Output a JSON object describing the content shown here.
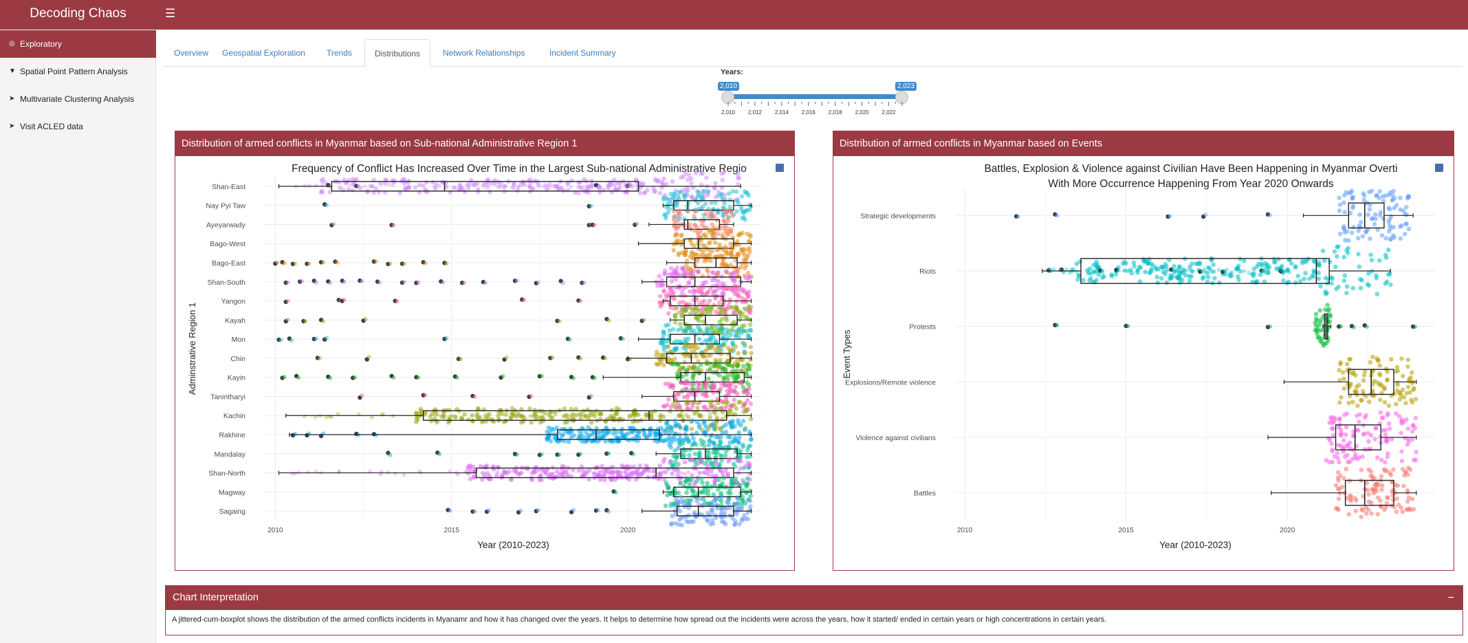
{
  "app": {
    "title": "Decoding Chaos",
    "menu_icon": "hamburger-icon"
  },
  "sidebar": {
    "items": [
      {
        "label": "Exploratory",
        "icon": "globe-icon",
        "active": true
      },
      {
        "label": "Spatial Point Pattern Analysis",
        "icon": "map-marker-icon",
        "active": false
      },
      {
        "label": "Multivariate Clustering Analysis",
        "icon": "map-pin-icon",
        "active": false
      },
      {
        "label": "Visit ACLED data",
        "icon": "paper-plane-icon",
        "active": false
      }
    ]
  },
  "tabs": [
    {
      "label": "Overview",
      "active": false
    },
    {
      "label": "Geospatial Exploration",
      "active": false
    },
    {
      "label": "Trends",
      "active": false
    },
    {
      "label": "Distributions",
      "active": true
    },
    {
      "label": "Network Relationships",
      "active": false
    },
    {
      "label": "Incident Summary",
      "active": false
    }
  ],
  "slider": {
    "label": "Years:",
    "from_label": "2,010",
    "to_label": "2,023",
    "min": 2010,
    "max": 2023,
    "from": 2010,
    "to": 2023,
    "tick_labels": [
      "2,010",
      "2,012",
      "2,014",
      "2,016",
      "2,018",
      "2,020",
      "2,022"
    ]
  },
  "panels": {
    "left_header": "Distribution of armed conflicts in Myanmar based on Sub-national Administrative Region 1",
    "right_header": "Distribution of armed conflicts in Myanmar based on Events"
  },
  "interpretation": {
    "title": "Chart Interpretation",
    "collapse_label": "−",
    "text": "A jittered-cum-boxplot shows the distribution of the armed conflicts incidents in Myanamr and how it has changed over the years. It helps to determine how spread out the incidents were across the years, how it started/ ended in certain years or high concentrations in certain years."
  },
  "chart_data": [
    {
      "type": "box",
      "title": "Frequency of Conflict Has Increased Over Time in the Largest Sub-national Administrative Regio",
      "xlabel": "Year (2010-2023)",
      "ylabel": "Adminstrative Region 1",
      "xlim": [
        2009.7,
        2023.8
      ],
      "xticks": [
        2010,
        2015,
        2020
      ],
      "categories": [
        "Shan-East",
        "Nay Pyi Taw",
        "Ayeyarwady",
        "Bago-West",
        "Bago-East",
        "Shan-South",
        "Yangon",
        "Kayah",
        "Mon",
        "Chin",
        "Kayin",
        "Tanintharyi",
        "Kachin",
        "Rakhine",
        "Mandalay",
        "Shan-North",
        "Magway",
        "Sagaing"
      ],
      "colors": [
        "#d18cff",
        "#29c1d6",
        "#fb7f73",
        "#d9951c",
        "#ee8b27",
        "#e26df2",
        "#ff69ac",
        "#7eb51b",
        "#13bfd0",
        "#c0a118",
        "#22b722",
        "#ff57c2",
        "#9aa812",
        "#0aa8ef",
        "#07c394",
        "#d96cf4",
        "#00c072",
        "#6498ff"
      ],
      "boxes": [
        {
          "min": 2010.1,
          "q1": 2011.6,
          "median": 2014.8,
          "q3": 2020.3,
          "max": 2023.2
        },
        {
          "min": 2021.0,
          "q1": 2021.3,
          "median": 2021.7,
          "q3": 2023.0,
          "max": 2023.5
        },
        {
          "min": 2020.6,
          "q1": 2021.6,
          "median": 2021.7,
          "q3": 2022.6,
          "max": 2023.0
        },
        {
          "min": 2020.3,
          "q1": 2021.6,
          "median": 2022.0,
          "q3": 2023.0,
          "max": 2023.5
        },
        {
          "min": 2021.1,
          "q1": 2021.9,
          "median": 2022.5,
          "q3": 2023.1,
          "max": 2023.5
        },
        {
          "min": 2020.4,
          "q1": 2021.1,
          "median": 2021.9,
          "q3": 2023.2,
          "max": 2023.5
        },
        {
          "min": 2021.0,
          "q1": 2021.2,
          "median": 2021.9,
          "q3": 2022.7,
          "max": 2023.5
        },
        {
          "min": 2021.2,
          "q1": 2021.6,
          "median": 2022.2,
          "q3": 2023.1,
          "max": 2023.5
        },
        {
          "min": 2020.3,
          "q1": 2021.2,
          "median": 2021.9,
          "q3": 2022.6,
          "max": 2023.5
        },
        {
          "min": 2020.0,
          "q1": 2021.1,
          "median": 2021.8,
          "q3": 2022.9,
          "max": 2023.5
        },
        {
          "min": 2019.3,
          "q1": 2021.5,
          "median": 2022.2,
          "q3": 2023.3,
          "max": 2023.5
        },
        {
          "min": 2020.4,
          "q1": 2021.3,
          "median": 2021.9,
          "q3": 2022.6,
          "max": 2023.5
        },
        {
          "min": 2010.3,
          "q1": 2014.2,
          "median": 2020.6,
          "q3": 2022.8,
          "max": 2023.5
        },
        {
          "min": 2010.4,
          "q1": 2018.0,
          "median": 2019.1,
          "q3": 2020.9,
          "max": 2023.5
        },
        {
          "min": 2020.8,
          "q1": 2021.5,
          "median": 2022.2,
          "q3": 2023.1,
          "max": 2023.5
        },
        {
          "min": 2010.1,
          "q1": 2015.7,
          "median": 2020.8,
          "q3": 2023.0,
          "max": 2023.5
        },
        {
          "min": 2021.0,
          "q1": 2021.3,
          "median": 2022.0,
          "q3": 2023.2,
          "max": 2023.5
        },
        {
          "min": 2020.4,
          "q1": 2021.4,
          "median": 2022.0,
          "q3": 2023.0,
          "max": 2023.5
        }
      ],
      "outliers": [
        [
          2011.5,
          2012.3,
          2019.1,
          2020.0
        ],
        [
          2011.4,
          2018.9
        ],
        [
          2011.6,
          2013.3,
          2018.9,
          2019.0,
          2020.2
        ],
        [],
        [
          2010.0,
          2010.2,
          2010.5,
          2010.9,
          2011.3,
          2011.7,
          2012.8,
          2013.2,
          2013.6,
          2014.2,
          2014.8
        ],
        [
          2010.3,
          2010.7,
          2011.1,
          2011.5,
          2011.9,
          2012.4,
          2012.9,
          2013.6,
          2014.0,
          2014.7,
          2015.3,
          2015.9,
          2016.8,
          2017.4,
          2018.1,
          2018.7
        ],
        [
          2010.3,
          2011.8,
          2011.9,
          2013.4,
          2017.0,
          2018.6
        ],
        [
          2010.3,
          2010.8,
          2011.3,
          2012.5,
          2018.0,
          2019.4,
          2020.4
        ],
        [
          2010.1,
          2010.4,
          2011.1,
          2011.4,
          2014.8,
          2018.3,
          2019.8
        ],
        [
          2011.2,
          2012.6,
          2015.2,
          2016.5,
          2017.8,
          2018.6,
          2019.3,
          2020.0
        ],
        [
          2010.2,
          2010.6,
          2011.5,
          2012.2,
          2013.3,
          2014.0,
          2015.1,
          2016.4,
          2017.5,
          2018.4,
          2019.0
        ],
        [
          2012.4,
          2014.2,
          2015.6,
          2017.2,
          2018.9
        ],
        [],
        [
          2010.5,
          2010.9,
          2011.3,
          2012.3,
          2012.8
        ],
        [
          2013.2,
          2014.6,
          2016.8,
          2017.5,
          2018.0,
          2018.6,
          2019.4,
          2020.1
        ],
        [],
        [
          2019.6
        ],
        [
          2014.9,
          2015.6,
          2016.0,
          2016.9,
          2017.4,
          2018.4,
          2019.1,
          2019.4
        ]
      ]
    },
    {
      "type": "box",
      "title": "Battles, Explosion & Violence against Civilian Have Been Happening in Myanmar Overti",
      "subtitle": "With More Occurrence Happening From Year 2020 Onwards",
      "xlabel": "Year (2010-2023)",
      "ylabel": "Event Types",
      "xlim": [
        2009.7,
        2024.6
      ],
      "xticks": [
        2010,
        2015,
        2020
      ],
      "categories": [
        "Strategic developments",
        "Riots",
        "Protests",
        "Explosions/Remote violence",
        "Violence against civilians",
        "Battles"
      ],
      "colors": [
        "#619cff",
        "#00bfc4",
        "#00ba38",
        "#b79f00",
        "#f564e3",
        "#f8766d"
      ],
      "boxes": [
        {
          "min": 2020.5,
          "q1": 2021.9,
          "median": 2022.4,
          "q3": 2023.0,
          "max": 2023.9
        },
        {
          "min": 2012.4,
          "q1": 2013.6,
          "median": 2020.9,
          "q3": 2021.3,
          "max": 2023.2
        },
        {
          "min": 2021.1,
          "q1": 2021.15,
          "median": 2021.2,
          "q3": 2021.25,
          "max": 2021.35
        },
        {
          "min": 2019.9,
          "q1": 2021.9,
          "median": 2022.6,
          "q3": 2023.3,
          "max": 2024.0
        },
        {
          "min": 2019.4,
          "q1": 2021.5,
          "median": 2022.1,
          "q3": 2022.9,
          "max": 2024.0
        },
        {
          "min": 2019.5,
          "q1": 2021.8,
          "median": 2022.4,
          "q3": 2023.3,
          "max": 2024.0
        }
      ],
      "outliers": [
        [
          2011.6,
          2012.8,
          2016.3,
          2017.4,
          2019.4
        ],
        [
          2012.6,
          2013.0,
          2014.2,
          2014.7,
          2016.4,
          2017.3,
          2018.0,
          2019.2,
          2019.8
        ],
        [
          2012.8,
          2015.0,
          2019.4,
          2021.6,
          2022.0,
          2022.4,
          2023.9
        ],
        [],
        [],
        []
      ]
    }
  ]
}
